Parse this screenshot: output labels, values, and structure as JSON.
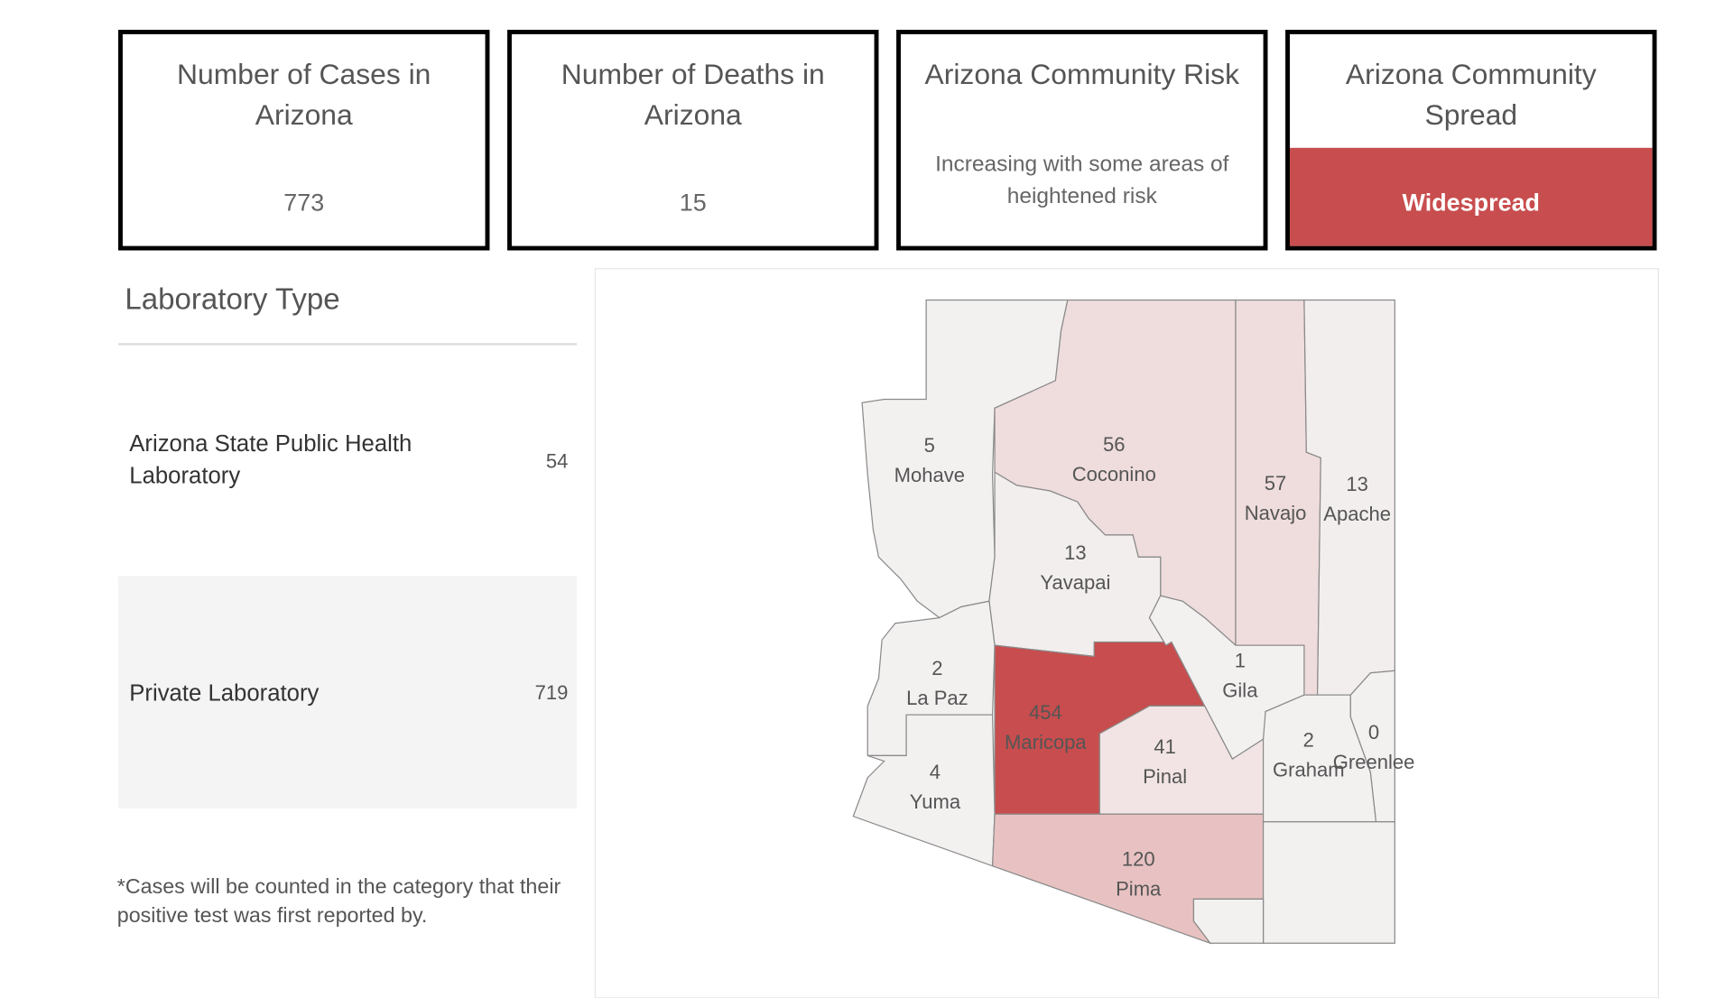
{
  "cards": [
    {
      "title": "Number of Cases in Arizona",
      "value": "773"
    },
    {
      "title": "Number of Deaths in Arizona",
      "value": "15"
    },
    {
      "title": "Arizona Community Risk",
      "value": "Increasing with some areas of heightened risk"
    },
    {
      "title": "Arizona Community Spread",
      "value": "Widespread"
    }
  ],
  "laboratory": {
    "title": "Laboratory Type",
    "rows": [
      {
        "name": "Arizona State Public Health Laboratory",
        "count": "54"
      },
      {
        "name": "Private Laboratory",
        "count": "719"
      }
    ],
    "footnote": "*Cases will be counted in the category that their positive test was first reported by."
  },
  "map": {
    "counties": [
      {
        "count": "5",
        "name": "Mohave"
      },
      {
        "count": "56",
        "name": "Coconino"
      },
      {
        "count": "57",
        "name": "Navajo"
      },
      {
        "count": "13",
        "name": "Apache"
      },
      {
        "count": "13",
        "name": "Yavapai"
      },
      {
        "count": "2",
        "name": "La Paz"
      },
      {
        "count": "454",
        "name": "Maricopa"
      },
      {
        "count": "1",
        "name": "Gila"
      },
      {
        "count": "4",
        "name": "Yuma"
      },
      {
        "count": "41",
        "name": "Pinal"
      },
      {
        "count": "120",
        "name": "Pima"
      },
      {
        "count": "2",
        "name": "Graham"
      },
      {
        "count": "0",
        "name": "Greenlee"
      }
    ]
  }
}
